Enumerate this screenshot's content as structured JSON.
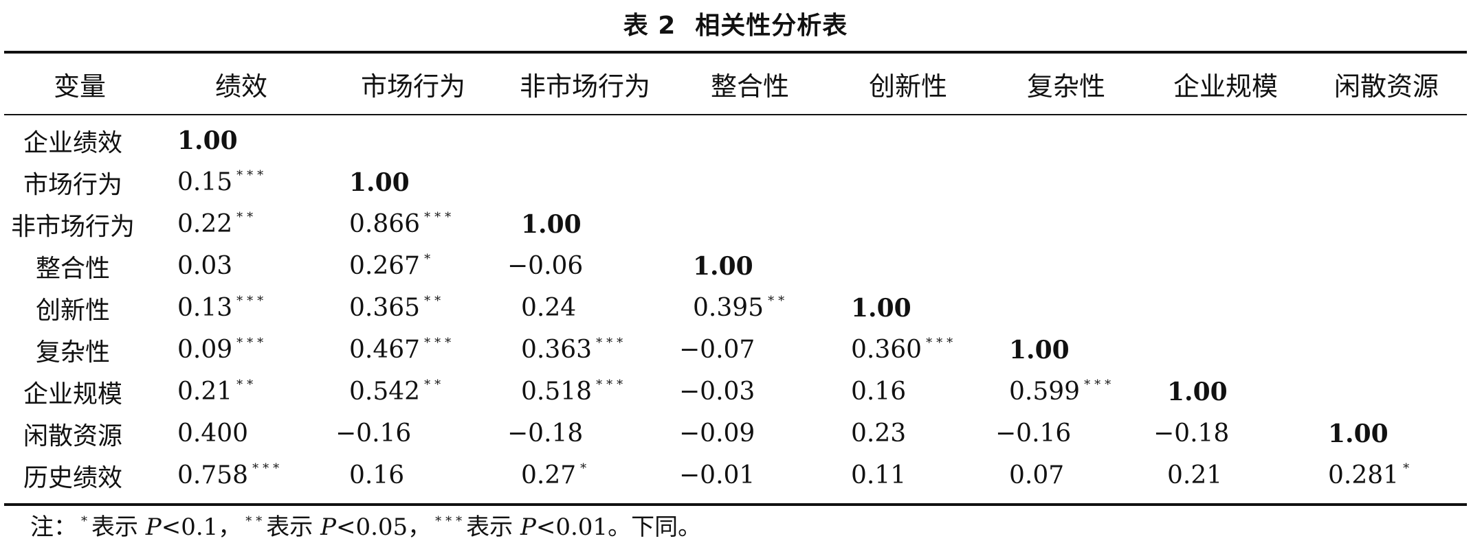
{
  "title": {
    "number": "表 2",
    "text": "相关性分析表"
  },
  "table": {
    "headers": [
      "变量",
      "绩效",
      "市场行为",
      "非市场行为",
      "整合性",
      "创新性",
      "复杂性",
      "企业规模",
      "闲散资源"
    ],
    "rows": [
      {
        "label": "企业绩效",
        "cells": [
          {
            "v": "1.00",
            "s": "",
            "d": true
          }
        ]
      },
      {
        "label": "市场行为",
        "cells": [
          {
            "v": "0.15",
            "s": "***"
          },
          {
            "v": "1.00",
            "s": "",
            "d": true
          }
        ]
      },
      {
        "label": "非市场行为",
        "cells": [
          {
            "v": "0.22",
            "s": "**"
          },
          {
            "v": "0.866",
            "s": "***"
          },
          {
            "v": "1.00",
            "s": "",
            "d": true
          }
        ]
      },
      {
        "label": "整合性",
        "cells": [
          {
            "v": "0.03",
            "s": ""
          },
          {
            "v": "0.267",
            "s": "*"
          },
          {
            "v": "−0.06",
            "s": ""
          },
          {
            "v": "1.00",
            "s": "",
            "d": true
          }
        ]
      },
      {
        "label": "创新性",
        "cells": [
          {
            "v": "0.13",
            "s": "***"
          },
          {
            "v": "0.365",
            "s": "**"
          },
          {
            "v": "0.24",
            "s": ""
          },
          {
            "v": "0.395",
            "s": "**"
          },
          {
            "v": "1.00",
            "s": "",
            "d": true
          }
        ]
      },
      {
        "label": "复杂性",
        "cells": [
          {
            "v": "0.09",
            "s": "***"
          },
          {
            "v": "0.467",
            "s": "***"
          },
          {
            "v": "0.363",
            "s": "***"
          },
          {
            "v": "−0.07",
            "s": ""
          },
          {
            "v": "0.360",
            "s": "***"
          },
          {
            "v": "1.00",
            "s": "",
            "d": true
          }
        ]
      },
      {
        "label": "企业规模",
        "cells": [
          {
            "v": "0.21",
            "s": "**"
          },
          {
            "v": "0.542",
            "s": "**"
          },
          {
            "v": "0.518",
            "s": "***"
          },
          {
            "v": "−0.03",
            "s": ""
          },
          {
            "v": "0.16",
            "s": ""
          },
          {
            "v": "0.599",
            "s": "***"
          },
          {
            "v": "1.00",
            "s": "",
            "d": true
          }
        ]
      },
      {
        "label": "闲散资源",
        "cells": [
          {
            "v": "0.400",
            "s": ""
          },
          {
            "v": "−0.16",
            "s": ""
          },
          {
            "v": "−0.18",
            "s": ""
          },
          {
            "v": "−0.09",
            "s": ""
          },
          {
            "v": "0.23",
            "s": ""
          },
          {
            "v": "−0.16",
            "s": ""
          },
          {
            "v": "−0.18",
            "s": ""
          },
          {
            "v": "1.00",
            "s": "",
            "d": true
          }
        ]
      },
      {
        "label": "历史绩效",
        "cells": [
          {
            "v": "0.758",
            "s": "***"
          },
          {
            "v": "0.16",
            "s": ""
          },
          {
            "v": "0.27",
            "s": "*"
          },
          {
            "v": "−0.01",
            "s": ""
          },
          {
            "v": "0.11",
            "s": ""
          },
          {
            "v": "0.07",
            "s": ""
          },
          {
            "v": "0.21",
            "s": ""
          },
          {
            "v": "0.281",
            "s": "*"
          }
        ]
      }
    ]
  },
  "note": {
    "prefix": "注：",
    "items": [
      {
        "stars": "*",
        "text": "表示",
        "p": "P",
        "cond": "<0.1，"
      },
      {
        "stars": "**",
        "text": "表示",
        "p": "P",
        "cond": "<0.05，"
      },
      {
        "stars": "***",
        "text": "表示",
        "p": "P",
        "cond": "<0.01。"
      }
    ],
    "suffix": "下同。"
  }
}
